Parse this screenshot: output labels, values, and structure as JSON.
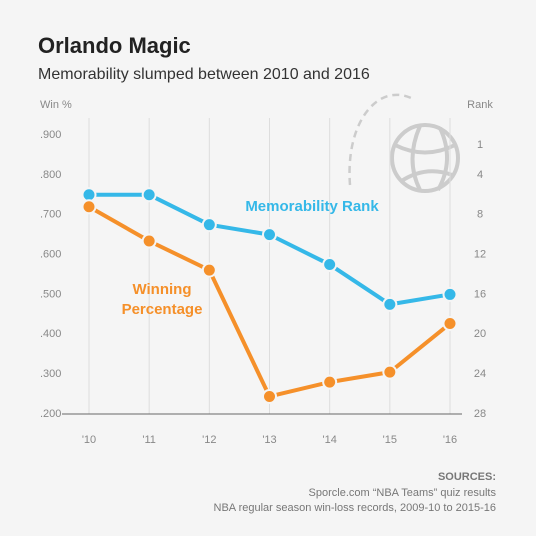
{
  "chart_data": {
    "type": "line",
    "title": "Orlando Magic",
    "subtitle": "Memorability slumped between 2010 and 2016",
    "y_label": "Win %",
    "y2_label": "Rank",
    "categories": [
      "'10",
      "'11",
      "'12",
      "'13",
      "'14",
      "'15",
      "'16"
    ],
    "series": [
      {
        "name": "Memorability Rank",
        "color": "#35b8e8",
        "axis": "y2",
        "values": [
          6,
          6,
          9,
          10,
          13,
          17,
          16
        ]
      },
      {
        "name": "Winning Percentage",
        "color": "#f5902a",
        "values": [
          0.72,
          0.634,
          0.561,
          0.244,
          0.28,
          0.305,
          0.427
        ]
      }
    ],
    "ylim": [
      0.2,
      0.9
    ],
    "yticks": [
      {
        "value": 0.2,
        "label": ".200"
      },
      {
        "value": 0.3,
        "label": ".300"
      },
      {
        "value": 0.4,
        "label": ".400"
      },
      {
        "value": 0.5,
        "label": ".500"
      },
      {
        "value": 0.6,
        "label": ".600"
      },
      {
        "value": 0.7,
        "label": ".700"
      },
      {
        "value": 0.8,
        "label": ".800"
      },
      {
        "value": 0.9,
        "label": ".900"
      }
    ],
    "y2lim": [
      28,
      0
    ],
    "y2ticks": [
      1,
      4,
      8,
      12,
      16,
      20,
      24,
      28
    ],
    "sources": {
      "heading": "SOURCES:",
      "lines": [
        "Sporcle.com “NBA Teams” quiz results",
        "NBA regular season win-loss records, 2009-10 to 2015-16"
      ]
    }
  }
}
